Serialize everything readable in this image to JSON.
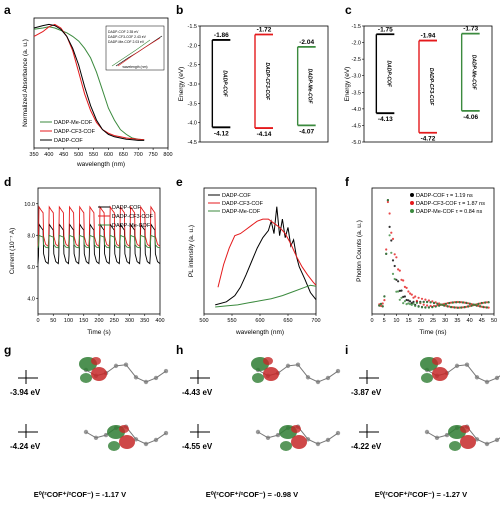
{
  "panels": {
    "a": "a",
    "b": "b",
    "c": "c",
    "d": "d",
    "e": "e",
    "f": "f",
    "g": "g",
    "h": "h",
    "i": "i"
  },
  "colors": {
    "black": "#000000",
    "red": "#e41a1c",
    "green": "#3b8a3e"
  },
  "chart_data": [
    {
      "panel": "a",
      "type": "line",
      "xlabel": "wavelength (nm)",
      "ylabel": "Normalized Absorbance (a. u.)",
      "xlim": [
        350,
        800
      ],
      "xticks": [
        "350",
        "400",
        "450",
        "500",
        "550",
        "600",
        "650",
        "700",
        "750",
        "800"
      ],
      "series": [
        {
          "name": "DADP-Me-COF",
          "color": "#3b8a3e",
          "x": [
            350,
            380,
            400,
            420,
            440,
            460,
            480,
            500,
            520,
            540,
            560,
            580,
            600,
            620,
            640,
            660,
            680,
            700,
            720
          ],
          "y": [
            0.96,
            0.97,
            0.98,
            0.97,
            0.95,
            0.93,
            0.9,
            0.86,
            0.8,
            0.72,
            0.6,
            0.45,
            0.3,
            0.2,
            0.12,
            0.08,
            0.05,
            0.04,
            0.035
          ]
        },
        {
          "name": "DADP-CF3-COF",
          "color": "#e41a1c",
          "x": [
            350,
            380,
            400,
            420,
            440,
            460,
            480,
            500,
            520,
            540,
            560,
            580,
            600,
            620,
            640,
            660,
            680,
            700,
            720
          ],
          "y": [
            0.9,
            0.94,
            0.98,
            1.0,
            0.97,
            0.9,
            0.78,
            0.6,
            0.42,
            0.28,
            0.18,
            0.12,
            0.09,
            0.07,
            0.06,
            0.05,
            0.045,
            0.04,
            0.035
          ]
        },
        {
          "name": "DADP-COF",
          "color": "#000000",
          "x": [
            350,
            380,
            400,
            420,
            440,
            460,
            480,
            500,
            520,
            540,
            560,
            580,
            600,
            620,
            640,
            660,
            680,
            700,
            720
          ],
          "y": [
            0.97,
            0.99,
            1.0,
            0.99,
            0.96,
            0.9,
            0.8,
            0.66,
            0.48,
            0.32,
            0.2,
            0.12,
            0.08,
            0.06,
            0.05,
            0.04,
            0.035,
            0.03,
            0.03
          ]
        }
      ],
      "inset": {
        "xlabel": "wavelength (nm)",
        "legend": [
          "DADP-COF 2.35 eV",
          "DADP-CF3-COF 2.43 eV",
          "DADP-Me-COF 2.03 eV"
        ]
      }
    },
    {
      "panel": "b",
      "type": "energy-levels",
      "ylabel": "Energy (eV)",
      "ylim": [
        -4.5,
        -1.5
      ],
      "yticks": [
        -1.5,
        -2.0,
        -2.5,
        -3.0,
        -3.5,
        -4.0,
        -4.5
      ],
      "levels": [
        {
          "name": "DADP-COF",
          "color": "#000000",
          "cb": -1.86,
          "vb": -4.12,
          "cb_label": "-1.86",
          "vb_label": "-4.12"
        },
        {
          "name": "DADP-CF3-COF",
          "color": "#e41a1c",
          "cb": -1.72,
          "vb": -4.14,
          "cb_label": "-1.72",
          "vb_label": "-4.14"
        },
        {
          "name": "DADP-Me-COF",
          "color": "#3b8a3e",
          "cb": -2.04,
          "vb": -4.07,
          "cb_label": "-2.04",
          "vb_label": "-4.07"
        }
      ]
    },
    {
      "panel": "c",
      "type": "energy-levels",
      "ylabel": "Energy (eV)",
      "ylim": [
        -5.0,
        -1.5
      ],
      "yticks": [
        -1.5,
        -2.0,
        -2.5,
        -3.0,
        -3.5,
        -4.0,
        -4.5,
        -5.0
      ],
      "levels": [
        {
          "name": "DADP-COF",
          "color": "#000000",
          "cb": -1.75,
          "vb": -4.13,
          "cb_label": "-1.75",
          "vb_label": "-4.13"
        },
        {
          "name": "DADP-CF3-COF",
          "color": "#e41a1c",
          "cb": -1.94,
          "vb": -4.72,
          "cb_label": "-1.94",
          "vb_label": "-4.72"
        },
        {
          "name": "DADP-Me-COF",
          "color": "#3b8a3e",
          "cb": -1.73,
          "vb": -4.06,
          "cb_label": "-1.73",
          "vb_label": "-4.06"
        }
      ]
    },
    {
      "panel": "d",
      "type": "line",
      "xlabel": "Time (s)",
      "ylabel": "Current (10⁻⁷ A)",
      "xlim": [
        0,
        400
      ],
      "ylim": [
        3.0,
        11.0
      ],
      "xticks": [
        0,
        50,
        100,
        150,
        200,
        250,
        300,
        350,
        400
      ],
      "yticks": [
        4.0,
        6.0,
        8.0,
        10.0
      ],
      "on_off_cycles": 12,
      "series": [
        {
          "name": "DADP-COF",
          "color": "#000000",
          "on": 8.7,
          "off": 6.2
        },
        {
          "name": "DADP-CF3-COF",
          "color": "#e41a1c",
          "on": 9.8,
          "off": 7.3
        },
        {
          "name": "DADP-Me-COF",
          "color": "#3b8a3e",
          "on": 8.0,
          "off": 7.2
        }
      ]
    },
    {
      "panel": "e",
      "type": "line",
      "xlabel": "wavelength (nm)",
      "ylabel": "PL intensity (a. u.)",
      "xlim": [
        500,
        700
      ],
      "xticks": [
        500,
        550,
        600,
        650,
        700
      ],
      "series": [
        {
          "name": "DADP-COF",
          "color": "#000000",
          "x": [
            520,
            540,
            555,
            565,
            575,
            585,
            595,
            605,
            615,
            620,
            625,
            630,
            635,
            640,
            645,
            650,
            655,
            660,
            665,
            670,
            680,
            690,
            700
          ],
          "y": [
            0.03,
            0.06,
            0.12,
            0.2,
            0.32,
            0.45,
            0.58,
            0.68,
            0.75,
            0.84,
            0.72,
            0.98,
            0.7,
            0.86,
            0.68,
            0.78,
            0.6,
            0.66,
            0.5,
            0.4,
            0.28,
            0.15,
            0.08
          ]
        },
        {
          "name": "DADP-CF3-COF",
          "color": "#e41a1c",
          "x": [
            525,
            535,
            545,
            555,
            565,
            575,
            585,
            595,
            605,
            615,
            625,
            635,
            645,
            655,
            665,
            675,
            685,
            695,
            700
          ],
          "y": [
            0.2,
            0.42,
            0.58,
            0.7,
            0.72,
            0.76,
            0.8,
            0.84,
            0.86,
            0.86,
            0.82,
            0.78,
            0.72,
            0.62,
            0.5,
            0.4,
            0.32,
            0.25,
            0.22
          ]
        },
        {
          "name": "DADP-Me-COF",
          "color": "#3b8a3e",
          "x": [
            520,
            540,
            560,
            580,
            600,
            620,
            640,
            660,
            680,
            690,
            700
          ],
          "y": [
            0.01,
            0.02,
            0.03,
            0.05,
            0.07,
            0.09,
            0.12,
            0.16,
            0.2,
            0.22,
            0.21
          ]
        }
      ]
    },
    {
      "panel": "f",
      "type": "scatter",
      "xlabel": "Time (ns)",
      "ylabel": "Photon Counts (a. u.)",
      "xlim": [
        0,
        50
      ],
      "xticks": [
        0,
        5,
        10,
        15,
        20,
        25,
        30,
        35,
        40,
        45,
        50
      ],
      "series": [
        {
          "name": "DADP-COF τ = 1.19 ns",
          "color": "#000000",
          "tau": 1.19
        },
        {
          "name": "DADP-CF3-COF τ = 1.87 ns",
          "color": "#e41a1c",
          "tau": 1.87
        },
        {
          "name": "DADP-Me-COF τ = 0.84 ns",
          "color": "#3b8a3e",
          "tau": 0.84
        }
      ]
    }
  ],
  "orbitals": [
    {
      "panel": "g",
      "upper": "-3.94 eV",
      "lower": "-4.24 eV",
      "potential": "E⁰(²COF⁺/²COF⁻) = -1.17 V"
    },
    {
      "panel": "h",
      "upper": "-4.43 eV",
      "lower": "-4.55 eV",
      "potential": "E⁰(²COF⁺/²COF⁻) = -0.98 V"
    },
    {
      "panel": "i",
      "upper": "-3.87 eV",
      "lower": "-4.22 eV",
      "potential": "E⁰(²COF⁺/²COF⁻) = -1.27 V"
    }
  ]
}
